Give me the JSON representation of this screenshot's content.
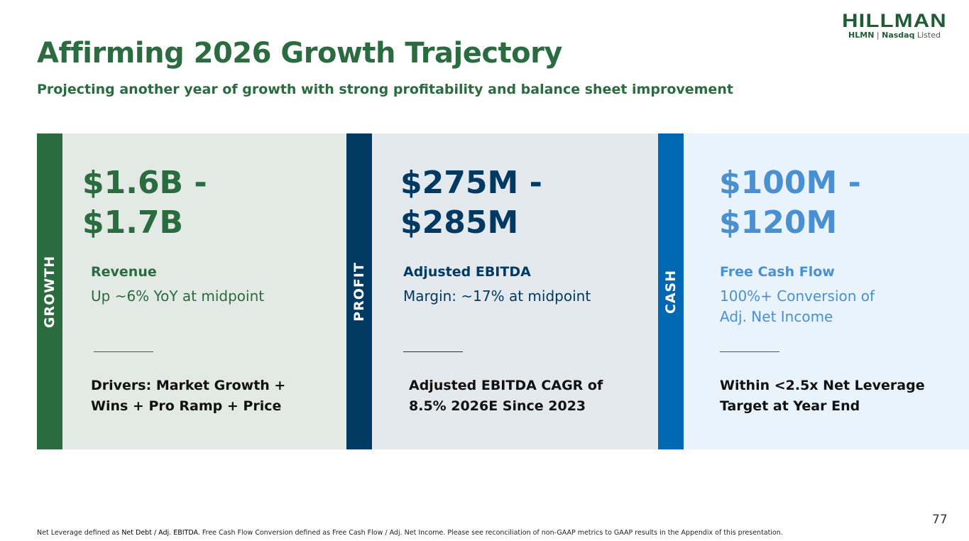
{
  "header": {
    "title": "Affirming 2026 Growth Trajectory",
    "subtitle": "Projecting another year of growth with strong profitability and balance sheet improvement"
  },
  "logo": {
    "name": "HILLMAN",
    "ticker": "HLMN",
    "separator": "|",
    "exchange": "Nasdaq",
    "listed": "Listed"
  },
  "colors": {
    "growth": "#2a6b3f",
    "profit": "#003a63",
    "cash": "#0068b3"
  },
  "panels": [
    {
      "tag": "GROWTH",
      "big1": "$1.6B -",
      "big2": "$1.7B",
      "label": "Revenue",
      "desc1": "Up ~6% YoY at midpoint",
      "desc2": "",
      "driver1": "Drivers: Market Growth +",
      "driver2": "Wins + Pro Ramp + Price"
    },
    {
      "tag": "PROFIT",
      "big1": "$275M -",
      "big2": "$285M",
      "label": "Adjusted EBITDA",
      "desc1": "Margin: ~17% at midpoint",
      "desc2": "",
      "driver1": "Adjusted EBITDA CAGR of",
      "driver2": "8.5% 2026E Since 2023"
    },
    {
      "tag": "CASH",
      "big1": "$100M -",
      "big2": "$120M",
      "label": "Free Cash Flow",
      "desc1": "100%+ Conversion of",
      "desc2": "Adj. Net Income",
      "driver1": "Within <2.5x Net Leverage",
      "driver2": "Target at Year End"
    }
  ],
  "footer": {
    "pre": "Net Leverage defined as ",
    "bold": "Net Debt / Adj. EBITDA",
    "post": ". Free Cash Flow Conversion defined as Free Cash Flow / Adj. Net Income. Please see reconciliation of non-GAAP metrics to GAAP results in the Appendix of this presentation.",
    "page": "77"
  }
}
